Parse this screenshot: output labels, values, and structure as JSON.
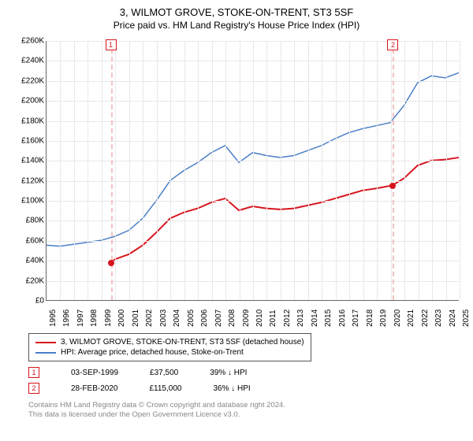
{
  "title": "3, WILMOT GROVE, STOKE-ON-TRENT, ST3 5SF",
  "subtitle": "Price paid vs. HM Land Registry's House Price Index (HPI)",
  "chart": {
    "type": "line",
    "ylim": [
      0,
      260000
    ],
    "ytick_step": 20000,
    "y_labels": [
      "£0",
      "£20K",
      "£40K",
      "£60K",
      "£80K",
      "£100K",
      "£120K",
      "£140K",
      "£160K",
      "£180K",
      "£200K",
      "£220K",
      "£240K",
      "£260K"
    ],
    "xlim": [
      1995,
      2025
    ],
    "x_labels": [
      "1995",
      "1996",
      "1997",
      "1998",
      "1999",
      "2000",
      "2001",
      "2002",
      "2003",
      "2004",
      "2005",
      "2006",
      "2007",
      "2008",
      "2009",
      "2010",
      "2011",
      "2012",
      "2013",
      "2014",
      "2015",
      "2016",
      "2017",
      "2018",
      "2019",
      "2020",
      "2021",
      "2022",
      "2023",
      "2024",
      "2025"
    ],
    "background_color": "#ffffff",
    "grid_color": "#e8e8e8",
    "series": [
      {
        "name": "price_paid",
        "color": "#d8151e",
        "width": 2,
        "points": [
          [
            1999.67,
            37500
          ],
          [
            2000,
            41000
          ],
          [
            2001,
            46000
          ],
          [
            2002,
            55000
          ],
          [
            2003,
            68000
          ],
          [
            2004,
            82000
          ],
          [
            2005,
            88000
          ],
          [
            2006,
            92000
          ],
          [
            2007,
            98000
          ],
          [
            2008,
            102000
          ],
          [
            2009,
            90000
          ],
          [
            2010,
            94000
          ],
          [
            2011,
            92000
          ],
          [
            2012,
            91000
          ],
          [
            2013,
            92000
          ],
          [
            2014,
            95000
          ],
          [
            2015,
            98000
          ],
          [
            2016,
            102000
          ],
          [
            2017,
            106000
          ],
          [
            2018,
            110000
          ],
          [
            2019,
            112000
          ],
          [
            2020.16,
            115000
          ],
          [
            2021,
            122000
          ],
          [
            2022,
            135000
          ],
          [
            2023,
            140000
          ],
          [
            2024,
            141000
          ],
          [
            2025,
            143000
          ]
        ]
      },
      {
        "name": "hpi",
        "color": "#4a7fc8",
        "width": 1.5,
        "points": [
          [
            1995,
            55000
          ],
          [
            1996,
            54000
          ],
          [
            1997,
            56000
          ],
          [
            1998,
            58000
          ],
          [
            1999,
            60000
          ],
          [
            2000,
            64000
          ],
          [
            2001,
            70000
          ],
          [
            2002,
            82000
          ],
          [
            2003,
            100000
          ],
          [
            2004,
            120000
          ],
          [
            2005,
            130000
          ],
          [
            2006,
            138000
          ],
          [
            2007,
            148000
          ],
          [
            2008,
            155000
          ],
          [
            2009,
            138000
          ],
          [
            2010,
            148000
          ],
          [
            2011,
            145000
          ],
          [
            2012,
            143000
          ],
          [
            2013,
            145000
          ],
          [
            2014,
            150000
          ],
          [
            2015,
            155000
          ],
          [
            2016,
            162000
          ],
          [
            2017,
            168000
          ],
          [
            2018,
            172000
          ],
          [
            2019,
            175000
          ],
          [
            2020,
            178000
          ],
          [
            2021,
            195000
          ],
          [
            2022,
            218000
          ],
          [
            2023,
            225000
          ],
          [
            2024,
            223000
          ],
          [
            2025,
            228000
          ]
        ]
      }
    ],
    "markers": [
      {
        "n": "1",
        "x": 1999.67,
        "y": 37500,
        "color": "#d8151e",
        "dash": "#f4c1c1",
        "badge_top": true
      },
      {
        "n": "2",
        "x": 2020.16,
        "y": 115000,
        "color": "#d8151e",
        "dash": "#f4c1c1",
        "badge_top": true
      }
    ]
  },
  "legend": [
    {
      "color": "#d8151e",
      "label": "3, WILMOT GROVE, STOKE-ON-TRENT, ST3 5SF (detached house)"
    },
    {
      "color": "#4a7fc8",
      "label": "HPI: Average price, detached house, Stoke-on-Trent"
    }
  ],
  "marker_rows": [
    {
      "n": "1",
      "color": "#d8151e",
      "date": "03-SEP-1999",
      "price": "£37,500",
      "pct": "39%",
      "dir": "↓",
      "cmp": "HPI"
    },
    {
      "n": "2",
      "color": "#d8151e",
      "date": "28-FEB-2020",
      "price": "£115,000",
      "pct": "36%",
      "dir": "↓",
      "cmp": "HPI"
    }
  ],
  "footer": {
    "l1": "Contains HM Land Registry data © Crown copyright and database right 2024.",
    "l2": "This data is licensed under the Open Government Licence v3.0."
  }
}
